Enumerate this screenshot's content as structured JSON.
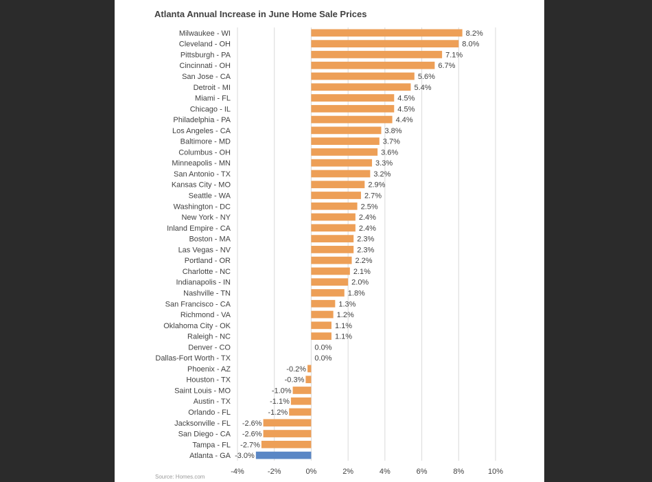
{
  "chart_data": {
    "type": "bar",
    "orientation": "horizontal",
    "title": "Atlanta Annual Increase in June Home Sale Prices",
    "source": "Source: Homes.com",
    "categories": [
      "Milwaukee - WI",
      "Cleveland - OH",
      "Pittsburgh - PA",
      "Cincinnati - OH",
      "San Jose - CA",
      "Detroit - MI",
      "Miami - FL",
      "Chicago - IL",
      "Philadelphia - PA",
      "Los Angeles - CA",
      "Baltimore - MD",
      "Columbus - OH",
      "Minneapolis - MN",
      "San Antonio - TX",
      "Kansas City - MO",
      "Seattle - WA",
      "Washington - DC",
      "New York - NY",
      "Inland Empire - CA",
      "Boston - MA",
      "Las Vegas - NV",
      "Portland - OR",
      "Charlotte - NC",
      "Indianapolis - IN",
      "Nashville - TN",
      "San Francisco - CA",
      "Richmond - VA",
      "Oklahoma City - OK",
      "Raleigh - NC",
      "Denver - CO",
      "Dallas-Fort Worth - TX",
      "Phoenix - AZ",
      "Houston - TX",
      "Saint Louis - MO",
      "Austin - TX",
      "Orlando - FL",
      "Jacksonville - FL",
      "San Diego - CA",
      "Tampa - FL",
      "Atlanta - GA"
    ],
    "values": [
      8.2,
      8.0,
      7.1,
      6.7,
      5.6,
      5.4,
      4.5,
      4.5,
      4.4,
      3.8,
      3.7,
      3.6,
      3.3,
      3.2,
      2.9,
      2.7,
      2.5,
      2.4,
      2.4,
      2.3,
      2.3,
      2.2,
      2.1,
      2.0,
      1.8,
      1.3,
      1.2,
      1.1,
      1.1,
      0.0,
      0.0,
      -0.2,
      -0.3,
      -1.0,
      -1.1,
      -1.2,
      -2.6,
      -2.6,
      -2.7,
      -3.0
    ],
    "labels": [
      "8.2%",
      "8.0%",
      "7.1%",
      "6.7%",
      "5.6%",
      "5.4%",
      "4.5%",
      "4.5%",
      "4.4%",
      "3.8%",
      "3.7%",
      "3.6%",
      "3.3%",
      "3.2%",
      "2.9%",
      "2.7%",
      "2.5%",
      "2.4%",
      "2.4%",
      "2.3%",
      "2.3%",
      "2.2%",
      "2.1%",
      "2.0%",
      "1.8%",
      "1.3%",
      "1.2%",
      "1.1%",
      "1.1%",
      "0.0%",
      "0.0%",
      "-0.2%",
      "-0.3%",
      "-1.0%",
      "-1.1%",
      "-1.2%",
      "-2.6%",
      "-2.6%",
      "-2.7%",
      "-3.0%"
    ],
    "highlight_category": "Atlanta - GA",
    "xlim": [
      -4,
      10
    ],
    "xticks": [
      -4,
      -2,
      0,
      2,
      4,
      6,
      8,
      10
    ],
    "xtick_labels": [
      "-4%",
      "-2%",
      "0%",
      "2%",
      "4%",
      "6%",
      "8%",
      "10%"
    ],
    "grid": true,
    "colors": {
      "bar": "#ED9F57",
      "highlight": "#5A87C5",
      "grid": "#d9d9d9",
      "text": "#404040"
    }
  }
}
